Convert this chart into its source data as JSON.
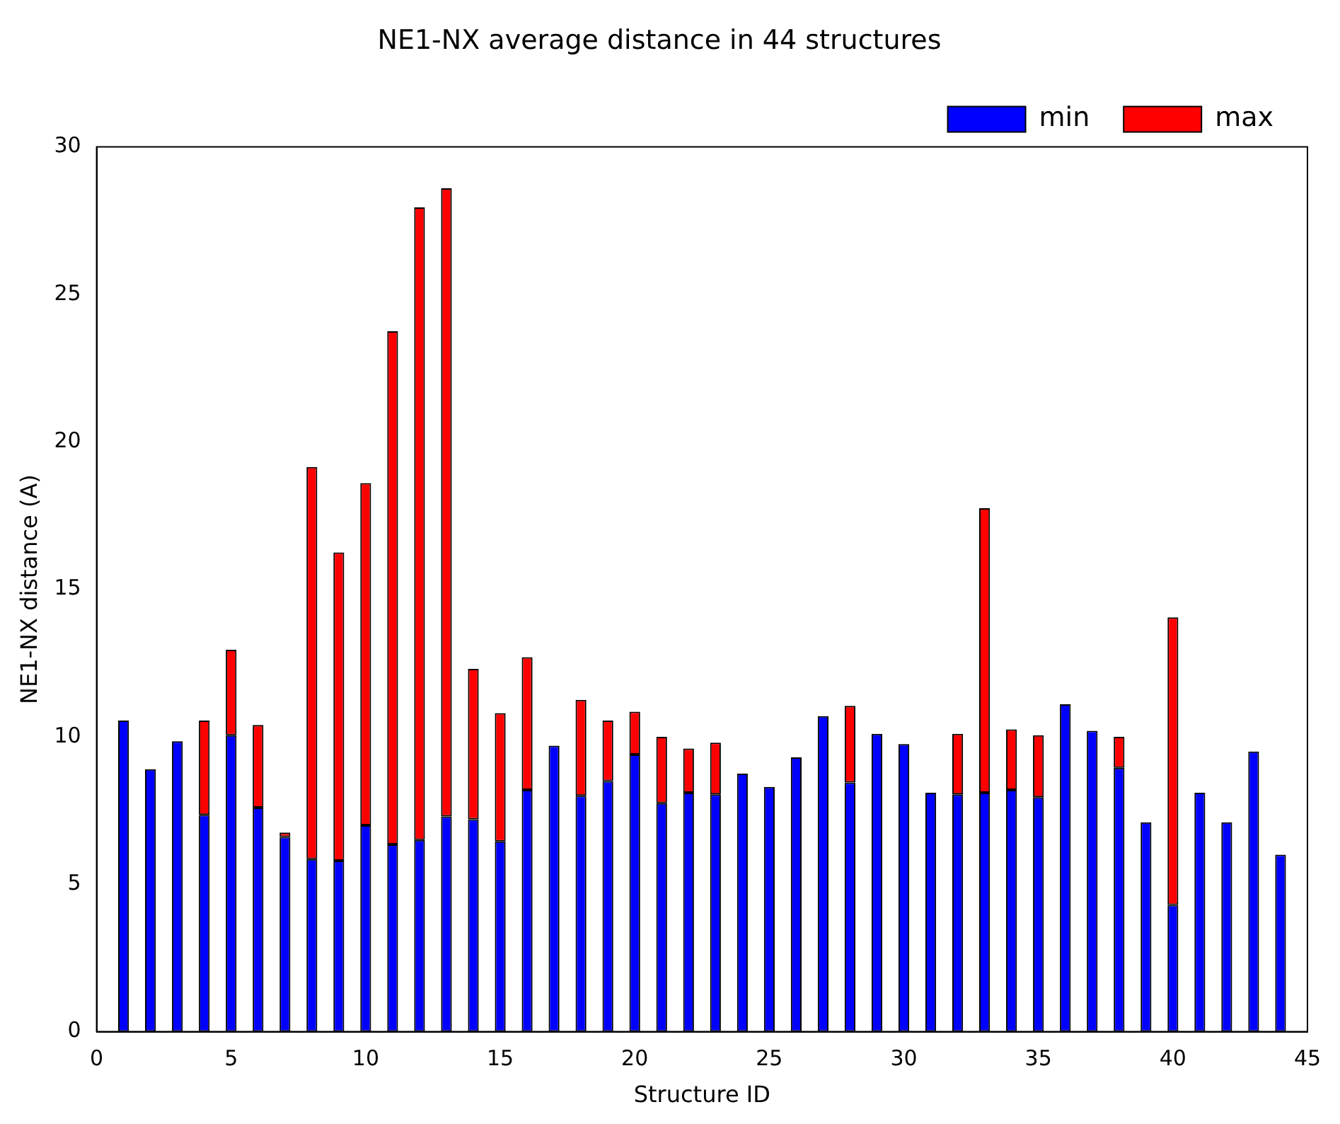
{
  "chart_data": {
    "type": "bar",
    "title": "NE1-NX average distance in 44 structures",
    "xlabel": "Structure ID",
    "ylabel": "NE1-NX distance (A)",
    "x": [
      1,
      2,
      3,
      4,
      5,
      6,
      7,
      8,
      9,
      10,
      11,
      12,
      13,
      14,
      15,
      16,
      17,
      18,
      19,
      20,
      21,
      22,
      23,
      24,
      25,
      26,
      27,
      28,
      29,
      30,
      31,
      32,
      33,
      34,
      35,
      36,
      37,
      38,
      39,
      40,
      41,
      42,
      43,
      44
    ],
    "series": [
      {
        "name": "min",
        "color": "#0000ff",
        "values": [
          10.55,
          8.9,
          9.85,
          7.35,
          10.05,
          7.6,
          6.6,
          5.85,
          5.8,
          7.0,
          6.35,
          6.5,
          7.3,
          7.2,
          6.45,
          8.2,
          9.7,
          8.0,
          8.5,
          9.4,
          7.75,
          8.1,
          8.05,
          8.75,
          8.3,
          9.3,
          10.7,
          8.45,
          10.1,
          9.75,
          8.1,
          8.05,
          8.1,
          8.2,
          7.95,
          11.1,
          10.2,
          8.95,
          7.1,
          4.3,
          8.1,
          7.1,
          9.5,
          6.0
        ]
      },
      {
        "name": "max",
        "color": "#ff0000",
        "values": [
          null,
          null,
          null,
          3.2,
          2.9,
          2.8,
          0.15,
          13.3,
          10.45,
          11.6,
          17.4,
          21.45,
          21.3,
          5.1,
          4.35,
          4.5,
          null,
          3.25,
          2.05,
          1.45,
          2.25,
          1.5,
          1.75,
          null,
          null,
          null,
          null,
          2.6,
          null,
          null,
          null,
          2.05,
          9.65,
          2.05,
          2.1,
          null,
          null,
          1.05,
          null,
          9.75,
          null,
          null,
          null,
          null
        ]
      }
    ],
    "stacked": true,
    "xlim": [
      0,
      45
    ],
    "xticks": [
      0,
      5,
      10,
      15,
      20,
      25,
      30,
      35,
      40,
      45
    ],
    "ylim": [
      0,
      30
    ],
    "yticks": [
      0,
      5,
      10,
      15,
      20,
      25,
      30
    ],
    "grid": false,
    "legend": "top right"
  }
}
